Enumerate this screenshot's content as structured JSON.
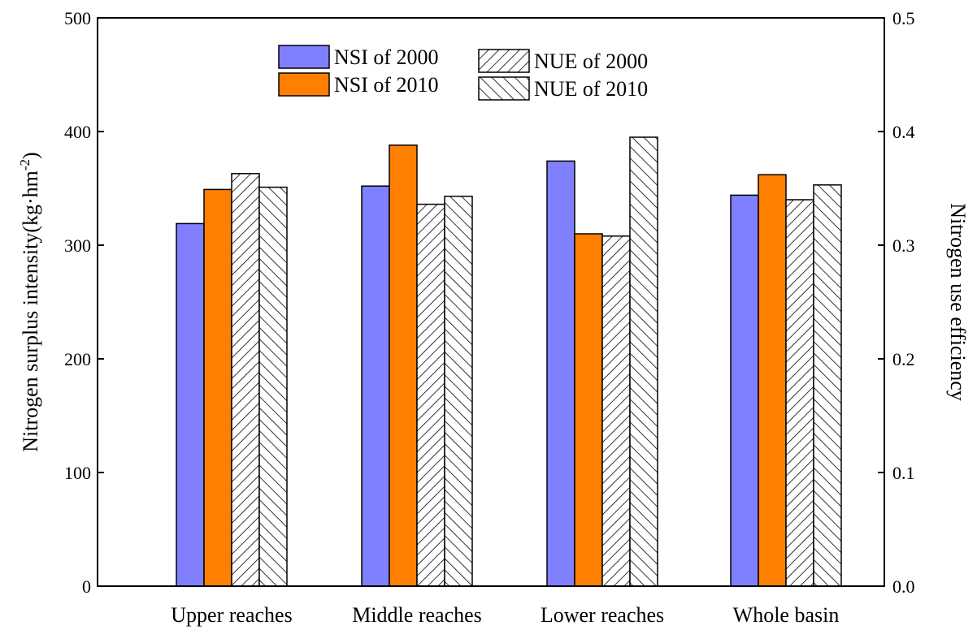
{
  "chart_data": {
    "type": "bar",
    "categories": [
      "Upper reaches",
      "Middle reaches",
      "Lower reaches",
      "Whole basin"
    ],
    "series": [
      {
        "name": "NSI of 2000",
        "axis": "left",
        "fill": "#8080ff",
        "pattern": "none",
        "values": [
          319,
          352,
          374,
          344
        ]
      },
      {
        "name": "NSI of 2010",
        "axis": "left",
        "fill": "#ff8000",
        "pattern": "none",
        "values": [
          349,
          388,
          310,
          362
        ]
      },
      {
        "name": "NUE of 2000",
        "axis": "right",
        "fill": "#ffffff",
        "pattern": "forward-diagonal",
        "values": [
          0.363,
          0.336,
          0.308,
          0.34
        ]
      },
      {
        "name": "NUE of 2010",
        "axis": "right",
        "fill": "#ffffff",
        "pattern": "back-diagonal",
        "values": [
          0.351,
          0.343,
          0.395,
          0.353
        ]
      }
    ],
    "ylabel": "Nitrogen surplus intensity(kg·hm",
    "ylabel_superscript": "-2",
    "ylabel_close": ")",
    "y2label": "Nitrogen use efficiency",
    "ylim": [
      0,
      500
    ],
    "y2lim": [
      0,
      0.5
    ],
    "yticks": [
      "0",
      "100",
      "200",
      "300",
      "400",
      "500"
    ],
    "y2ticks": [
      "0.0",
      "0.1",
      "0.2",
      "0.3",
      "0.4",
      "0.5"
    ],
    "legend_position": "top-center",
    "grid": false
  }
}
